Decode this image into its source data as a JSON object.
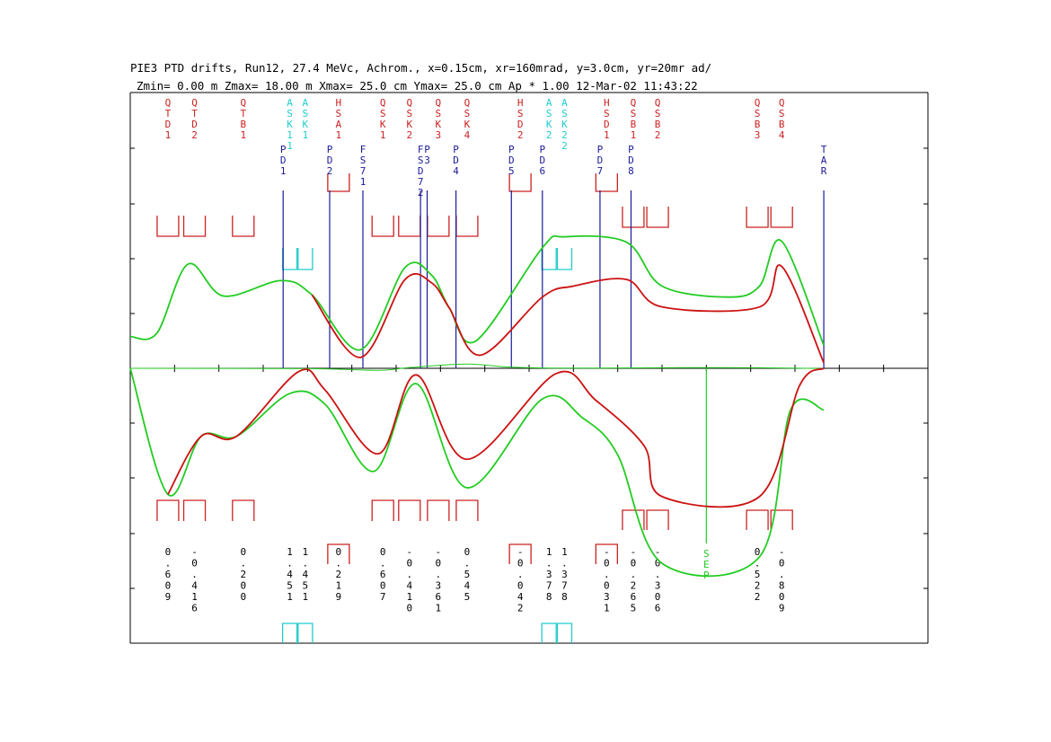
{
  "header": {
    "title": "PIE3 PTD drifts, Run12, 27.4 MeVc, Achrom., x=0.15cm, xr=160mrad, y=3.0cm, yr=20mr ad/",
    "subtitle": "Zmin=  0.00 m  Zmax= 18.00 m  Xmax= 25.0 cm Ymax= 25.0 cm Ap * 1.00 12-Mar-02 11:43:22"
  },
  "colors": {
    "quad": "#cc2222",
    "dipole_label": "#cc2222",
    "steering": "#22cccc",
    "profile": "#1a1a99",
    "envelope_green": "#22cc22",
    "envelope_red": "#cc1111",
    "envelope_black": "#000000",
    "frame": "#000000"
  },
  "chart_data": {
    "type": "line",
    "axes": {
      "z_range_m": [
        0.0,
        18.0
      ],
      "x_max_cm": 25.0,
      "y_max_cm": 25.0
    },
    "magnets": [
      {
        "label": "QTD1",
        "z": 0.85,
        "kind": "quad",
        "sign": "down",
        "field": "0.609"
      },
      {
        "label": "QTD2",
        "z": 1.45,
        "kind": "quad",
        "sign": "down",
        "field": "-0.416"
      },
      {
        "label": "QTB1",
        "z": 2.55,
        "kind": "quad",
        "sign": "down",
        "field": "0.200"
      },
      {
        "label": "ASK11",
        "z": 3.6,
        "kind": "steer",
        "sign": "up",
        "field": "1.451"
      },
      {
        "label": "ASK1",
        "z": 3.95,
        "kind": "steer",
        "sign": "up",
        "field": "1.451"
      },
      {
        "label": "HSA1",
        "z": 4.7,
        "kind": "dipole",
        "sign": "up",
        "field": "0.219"
      },
      {
        "label": "QSK1",
        "z": 5.7,
        "kind": "quad",
        "sign": "down",
        "field": "0.607"
      },
      {
        "label": "QSK2",
        "z": 6.3,
        "kind": "quad",
        "sign": "down",
        "field": "-0.410"
      },
      {
        "label": "QSK3",
        "z": 6.95,
        "kind": "quad",
        "sign": "down",
        "field": "-0.361"
      },
      {
        "label": "QSK4",
        "z": 7.6,
        "kind": "quad",
        "sign": "down",
        "field": "0.545"
      },
      {
        "label": "HSD2",
        "z": 8.8,
        "kind": "dipole",
        "sign": "up",
        "field": "-0.042"
      },
      {
        "label": "ASK2",
        "z": 9.45,
        "kind": "steer",
        "sign": "up",
        "field": "1.378"
      },
      {
        "label": "ASK22",
        "z": 9.8,
        "kind": "steer",
        "sign": "up",
        "field": "1.378"
      },
      {
        "label": "HSD1",
        "z": 10.75,
        "kind": "dipole",
        "sign": "up",
        "field": "-0.031"
      },
      {
        "label": "QSB1",
        "z": 11.35,
        "kind": "quad",
        "sign": "up",
        "field": "-0.265"
      },
      {
        "label": "QSB2",
        "z": 11.9,
        "kind": "quad",
        "sign": "up",
        "field": "-0.306"
      },
      {
        "label": "QSB3",
        "z": 14.15,
        "kind": "quad",
        "sign": "up",
        "field": "0.522"
      },
      {
        "label": "QSB4",
        "z": 14.7,
        "kind": "quad",
        "sign": "up",
        "field": "-0.809"
      }
    ],
    "profiles": [
      {
        "label": "PD1",
        "z": 3.45
      },
      {
        "label": "PD2",
        "z": 4.5
      },
      {
        "label": "FS71",
        "z": 5.25
      },
      {
        "label": "FSD72",
        "z": 6.55
      },
      {
        "label": "P3",
        "z": 6.7
      },
      {
        "label": "PD4",
        "z": 7.35
      },
      {
        "label": "PD5",
        "z": 8.6
      },
      {
        "label": "PD6",
        "z": 9.3
      },
      {
        "label": "PD7",
        "z": 10.6
      },
      {
        "label": "PD8",
        "z": 11.3
      },
      {
        "label": "TAR",
        "z": 15.65
      }
    ],
    "sep": {
      "label": "SEP",
      "z": 13.0
    },
    "series": [
      {
        "color": "green",
        "panel": "x",
        "points": [
          [
            0,
            0.29
          ],
          [
            0.6,
            0.32
          ],
          [
            1.3,
            0.95
          ],
          [
            2.1,
            0.66
          ],
          [
            3.4,
            0.8
          ],
          [
            4.1,
            0.67
          ],
          [
            5.2,
            0.17
          ],
          [
            6.2,
            0.92
          ],
          [
            6.8,
            0.85
          ],
          [
            7.2,
            0.55
          ],
          [
            7.8,
            0.25
          ],
          [
            9.3,
            1.1
          ],
          [
            9.8,
            1.2
          ],
          [
            11.2,
            1.15
          ],
          [
            12.0,
            0.75
          ],
          [
            13.5,
            0.65
          ],
          [
            14.2,
            0.75
          ],
          [
            14.7,
            1.16
          ],
          [
            15.65,
            0.21
          ]
        ]
      },
      {
        "color": "red",
        "panel": "x",
        "points": [
          [
            4.1,
            0.67
          ],
          [
            5.2,
            0.1
          ],
          [
            6.2,
            0.81
          ],
          [
            6.8,
            0.78
          ],
          [
            7.2,
            0.55
          ],
          [
            7.9,
            0.12
          ],
          [
            9.3,
            0.65
          ],
          [
            10.0,
            0.75
          ],
          [
            11.2,
            0.81
          ],
          [
            12.0,
            0.56
          ],
          [
            14.2,
            0.56
          ],
          [
            14.7,
            0.93
          ],
          [
            15.65,
            0.05
          ]
        ]
      },
      {
        "color": "green",
        "panel": "dispersion",
        "points": [
          [
            0,
            0.0
          ],
          [
            4.0,
            -0.03
          ],
          [
            5.6,
            -0.18
          ],
          [
            6.3,
            0.07
          ],
          [
            7.6,
            0.39
          ],
          [
            8.5,
            0.12
          ],
          [
            9.5,
            0.02
          ],
          [
            11.0,
            0.03
          ],
          [
            12.5,
            0.06
          ],
          [
            14.2,
            0.05
          ],
          [
            15.65,
            -0.02
          ]
        ]
      },
      {
        "color": "green",
        "panel": "y",
        "points": [
          [
            0,
            0.0
          ],
          [
            0.85,
            1.15
          ],
          [
            1.6,
            0.62
          ],
          [
            2.4,
            0.62
          ],
          [
            3.6,
            0.23
          ],
          [
            4.4,
            0.33
          ],
          [
            5.5,
            0.94
          ],
          [
            6.45,
            0.14
          ],
          [
            7.6,
            1.09
          ],
          [
            9.3,
            0.28
          ],
          [
            10.2,
            0.45
          ],
          [
            11.0,
            0.79
          ],
          [
            12.0,
            1.78
          ],
          [
            14.2,
            1.72
          ],
          [
            14.9,
            0.38
          ],
          [
            15.65,
            0.38
          ]
        ]
      },
      {
        "color": "red",
        "panel": "y",
        "points": [
          [
            0.85,
            1.15
          ],
          [
            1.6,
            0.62
          ],
          [
            2.4,
            0.62
          ],
          [
            3.8,
            0.03
          ],
          [
            4.4,
            0.2
          ],
          [
            5.6,
            0.78
          ],
          [
            6.45,
            0.06
          ],
          [
            7.6,
            0.83
          ],
          [
            9.6,
            0.05
          ],
          [
            10.5,
            0.29
          ],
          [
            11.6,
            0.71
          ],
          [
            12.0,
            1.17
          ],
          [
            14.2,
            1.17
          ],
          [
            15.1,
            0.16
          ],
          [
            15.65,
            0.0
          ]
        ]
      }
    ]
  }
}
